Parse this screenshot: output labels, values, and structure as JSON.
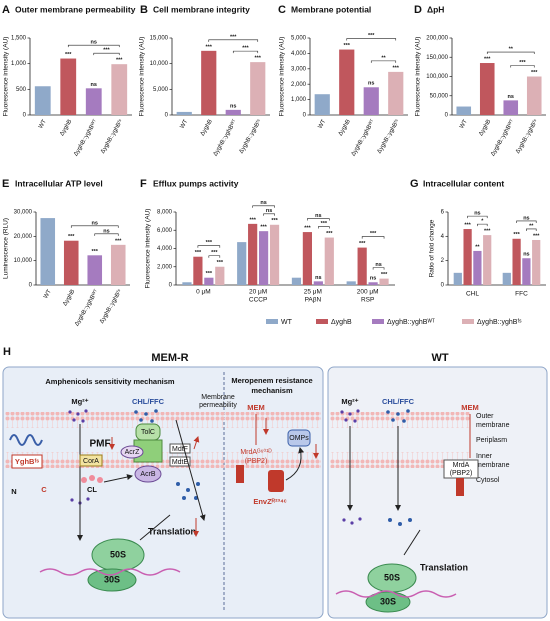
{
  "chart_data": [
    {
      "type": "bar",
      "label": "A",
      "title": "Outer membrane permeability",
      "ylabel": "Fluorescence intensity (AU)",
      "categories": [
        "WT",
        "ΔyghB",
        "ΔyghB::yghBᵂᵀ",
        "ΔyghB::yghBᶠˢ"
      ],
      "values": [
        560,
        1100,
        520,
        990
      ],
      "colors": [
        "#8fa9c9",
        "#c0575d",
        "#a57bbf",
        "#dcb0b5"
      ],
      "significance": [
        null,
        "***",
        "ns",
        "***"
      ],
      "brackets": [
        {
          "from": 2,
          "to": 3,
          "text": "***"
        },
        {
          "from": 1,
          "to": 3,
          "text": "ns"
        }
      ],
      "ylim": [
        0,
        1500
      ],
      "yticks": [
        0,
        500,
        {
          "value": 1000,
          "label": "1,000"
        },
        {
          "value": 1500,
          "label": "1,500"
        }
      ]
    },
    {
      "type": "bar",
      "label": "B",
      "title": "Cell membrane integrity",
      "ylabel": "Fluorescence intensity (AU)",
      "categories": [
        "WT",
        "ΔyghB",
        "ΔyghB::yghBᵂᵀ",
        "ΔyghB::yghBᶠˢ"
      ],
      "values": [
        600,
        12500,
        1000,
        10300
      ],
      "colors": [
        "#8fa9c9",
        "#c0575d",
        "#a57bbf",
        "#dcb0b5"
      ],
      "significance": [
        null,
        "***",
        "ns",
        "***"
      ],
      "brackets": [
        {
          "from": 2,
          "to": 3,
          "text": "***"
        },
        {
          "from": 1,
          "to": 3,
          "text": "***"
        }
      ],
      "ylim": [
        0,
        15000
      ],
      "yticks": [
        0,
        {
          "value": 5000,
          "label": "5,000"
        },
        {
          "value": 10000,
          "label": "10,000"
        },
        {
          "value": 15000,
          "label": "15,000"
        }
      ]
    },
    {
      "type": "bar",
      "label": "C",
      "title": "Membrane potential",
      "ylabel": "Fluorescence intensity (AU)",
      "categories": [
        "WT",
        "ΔyghB",
        "ΔyghB::yghBᵂᵀ",
        "ΔyghB::yghBᶠˢ"
      ],
      "values": [
        1350,
        4250,
        1800,
        2800
      ],
      "colors": [
        "#8fa9c9",
        "#c0575d",
        "#a57bbf",
        "#dcb0b5"
      ],
      "significance": [
        null,
        "***",
        "ns",
        "***"
      ],
      "brackets": [
        {
          "from": 2,
          "to": 3,
          "text": "**"
        },
        {
          "from": 1,
          "to": 3,
          "text": "***"
        }
      ],
      "ylim": [
        0,
        5000
      ],
      "yticks": [
        0,
        {
          "value": 1000,
          "label": "1,000"
        },
        {
          "value": 2000,
          "label": "2,000"
        },
        {
          "value": 3000,
          "label": "3,000"
        },
        {
          "value": 4000,
          "label": "4,000"
        },
        {
          "value": 5000,
          "label": "5,000"
        }
      ]
    },
    {
      "type": "bar",
      "label": "D",
      "title": "ΔpH",
      "ylabel": "Fluorescence intensity (AU)",
      "categories": [
        "WT",
        "ΔyghB",
        "ΔyghB::yghBᵂᵀ",
        "ΔyghB::yghBᶠˢ"
      ],
      "values": [
        22000,
        135000,
        38000,
        100000
      ],
      "colors": [
        "#8fa9c9",
        "#c0575d",
        "#a57bbf",
        "#dcb0b5"
      ],
      "significance": [
        null,
        "***",
        "ns",
        "***"
      ],
      "brackets": [
        {
          "from": 2,
          "to": 3,
          "text": "***"
        },
        {
          "from": 1,
          "to": 3,
          "text": "**"
        }
      ],
      "ylim": [
        0,
        200000
      ],
      "yticks": [
        0,
        {
          "value": 50000,
          "label": "50,000"
        },
        {
          "value": 100000,
          "label": "100,000"
        },
        {
          "value": 150000,
          "label": "150,000"
        },
        {
          "value": 200000,
          "label": "200,000"
        }
      ]
    },
    {
      "type": "bar",
      "label": "E",
      "title": "Intracellular ATP level",
      "ylabel": "Luminescence (RLU)",
      "categories": [
        "WT",
        "ΔyghB",
        "ΔyghB::yghBᵂᵀ",
        "ΔyghB::yghBᶠˢ"
      ],
      "values": [
        27500,
        18200,
        12200,
        16500
      ],
      "colors": [
        "#8fa9c9",
        "#c0575d",
        "#a57bbf",
        "#dcb0b5"
      ],
      "significance": [
        null,
        "***",
        "***",
        "***"
      ],
      "brackets": [
        {
          "from": 2,
          "to": 3,
          "text": "ns"
        },
        {
          "from": 1,
          "to": 3,
          "text": "ns"
        }
      ],
      "ylim": [
        0,
        30000
      ],
      "yticks": [
        0,
        {
          "value": 10000,
          "label": "10,000"
        },
        {
          "value": 20000,
          "label": "20,000"
        },
        {
          "value": 30000,
          "label": "30,000"
        }
      ]
    },
    {
      "type": "bar",
      "label": "F",
      "title": "Efflux pumps activity",
      "ylabel": "Fluorescence intensity (AU)",
      "categories": [
        [
          "0 μM"
        ],
        [
          "20 μM",
          "CCCP"
        ],
        [
          "25 μM",
          "PAβN"
        ],
        [
          "200 μM",
          "RSP"
        ]
      ],
      "series": [
        {
          "name": "WT",
          "color": "#8fa9c9",
          "values": [
            300,
            4700,
            800,
            400
          ]
        },
        {
          "name": "ΔyghB",
          "color": "#c0575d",
          "values": [
            3100,
            6700,
            5800,
            4100
          ],
          "significance": [
            "***",
            "***",
            "***",
            "***"
          ]
        },
        {
          "name": "ΔyghB::yghBᵂᵀ",
          "color": "#a57bbf",
          "values": [
            800,
            5900,
            400,
            300
          ],
          "significance": [
            "***",
            "***",
            "ns",
            "ns"
          ]
        },
        {
          "name": "ΔyghB::yghBᶠˢ",
          "color": "#dcb0b5",
          "values": [
            2000,
            6600,
            5200,
            700
          ],
          "significance": [
            "***",
            "***",
            "***",
            "***"
          ]
        }
      ],
      "brackets": [
        {
          "group": 0,
          "from": 2,
          "to": 3,
          "text": "***"
        },
        {
          "group": 0,
          "from": 1,
          "to": 3,
          "text": "***"
        },
        {
          "group": 1,
          "from": 2,
          "to": 3,
          "text": "ns"
        },
        {
          "group": 1,
          "from": 1,
          "to": 3,
          "text": "ns"
        },
        {
          "group": 2,
          "from": 2,
          "to": 3,
          "text": "***"
        },
        {
          "group": 2,
          "from": 1,
          "to": 3,
          "text": "ns"
        },
        {
          "group": 3,
          "from": 2,
          "to": 3,
          "text": "ns"
        },
        {
          "group": 3,
          "from": 1,
          "to": 3,
          "text": "***"
        }
      ],
      "legend": "bottom",
      "ylim": [
        0,
        8000
      ],
      "yticks": [
        0,
        {
          "value": 2000,
          "label": "2,000"
        },
        {
          "value": 4000,
          "label": "4,000"
        },
        {
          "value": 6000,
          "label": "6,000"
        },
        {
          "value": 8000,
          "label": "8,000"
        }
      ]
    },
    {
      "type": "bar",
      "label": "G",
      "title": "Intracellular content",
      "ylabel": "Ratio of fold change",
      "categories": [
        "CHL",
        "FFC"
      ],
      "series": [
        {
          "color": "#8fa9c9",
          "values": [
            1,
            1
          ]
        },
        {
          "color": "#c0575d",
          "values": [
            4.6,
            3.8
          ],
          "significance": [
            "***",
            "***"
          ]
        },
        {
          "color": "#a57bbf",
          "values": [
            2.8,
            2.2
          ],
          "significance": [
            "**",
            "ns"
          ]
        },
        {
          "color": "#dcb0b5",
          "values": [
            4.1,
            3.7
          ],
          "significance": [
            "***",
            "***"
          ]
        }
      ],
      "brackets": [
        {
          "group": 0,
          "from": 2,
          "to": 3,
          "text": "*"
        },
        {
          "group": 0,
          "from": 1,
          "to": 3,
          "text": "ns"
        },
        {
          "group": 1,
          "from": 2,
          "to": 3,
          "text": "**"
        },
        {
          "group": 1,
          "from": 1,
          "to": 3,
          "text": "ns"
        }
      ],
      "ylim": [
        0,
        6
      ],
      "yticks": [
        0,
        2,
        4,
        6
      ]
    }
  ],
  "diagram": {
    "label": "H",
    "left_title": "MEM-R",
    "right_title": "WT",
    "amphenicol_title": "Amphenicols sensitivity mechanism",
    "meropenem_title": [
      "Meropenem resistance",
      "mechanism"
    ],
    "left": {
      "mg": "Mg²⁺",
      "drug": "CHL/FFC",
      "pmf": "PMF",
      "tolc": "TolC",
      "acrz": "AcrZ",
      "mdtf": "MdtF",
      "mdte": "MdtE",
      "acrb": "AcrB",
      "cora": "CorA",
      "cl": "CL",
      "yghb": "YghBᶠˢ",
      "n": "N",
      "c": "C",
      "permeability": [
        "Membrane",
        "permeability"
      ],
      "translation": "Translation",
      "s50": "50S",
      "s30": "30S",
      "mem": "MEM",
      "omps": "OMPs",
      "mrda": "MrdAᴳ⁶⁰¹ᴰ",
      "pbp2": "(PBP2)",
      "envz": "EnvZᴿ²³⁴ᶜ"
    },
    "right": {
      "mg": "Mg²⁺",
      "drug": "CHL/FFC",
      "mem": "MEM",
      "mrda": "MrdA",
      "pbp2": "(PBP2)",
      "translation": "Translation",
      "s50": "50S",
      "s30": "30S"
    },
    "compartments": {
      "outer": [
        "Outer",
        "membrane"
      ],
      "periplasm": "Periplasm",
      "inner": [
        "Inner",
        "membrane"
      ],
      "cytosol": "Cytosol"
    }
  }
}
